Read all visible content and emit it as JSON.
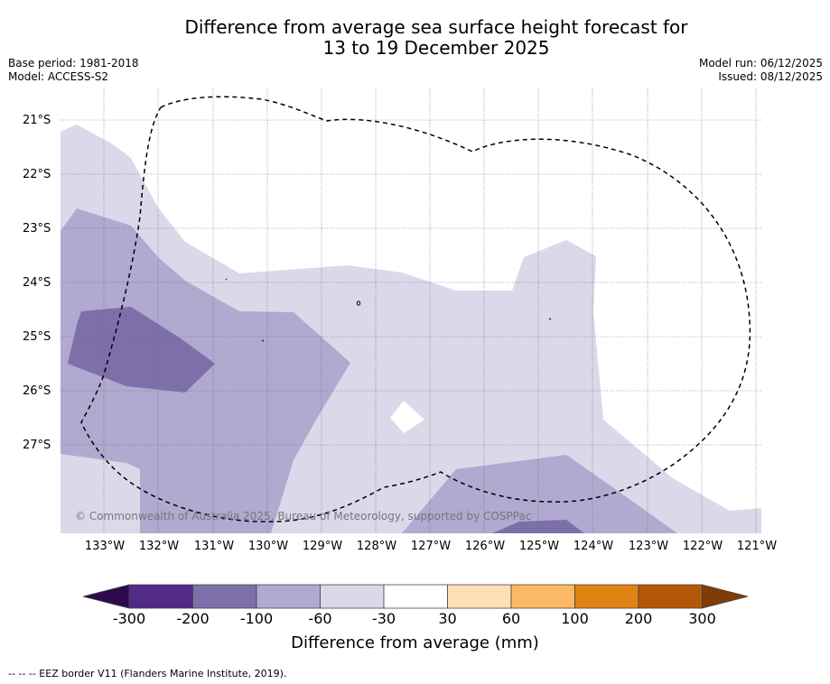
{
  "title": {
    "line1": "Difference from average sea surface height forecast for",
    "line2": "13 to 19 December 2025"
  },
  "meta_left": {
    "base_period": "Base period: 1981-2018",
    "model": "Model: ACCESS-S2"
  },
  "meta_right": {
    "model_run": "Model run: 06/12/2025",
    "issued": "Issued: 08/12/2025"
  },
  "map": {
    "lat_labels": [
      "21°S",
      "22°S",
      "23°S",
      "24°S",
      "25°S",
      "26°S",
      "27°S"
    ],
    "lon_labels": [
      "133°W",
      "132°W",
      "131°W",
      "130°W",
      "129°W",
      "128°W",
      "127°W",
      "126°W",
      "125°W",
      "124°W",
      "123°W",
      "122°W",
      "121°W"
    ],
    "copyright": "© Commonwealth of Australia 2025, Bureau of Meteorology, supported by COSPPac",
    "region_colors": {
      "-300_-200": "#522a87",
      "-200_-100": "#7e6fab",
      "-100_-60": "#b0a9d0",
      "-60_-30": "#d9d9ea",
      "-30_30": "#ffffff"
    },
    "eez_border_style": "dashed"
  },
  "colorbar": {
    "bins": [
      {
        "range": "<-300",
        "color": "#2d0a4e"
      },
      {
        "range": "-300 to -200",
        "color": "#522a87"
      },
      {
        "range": "-200 to -100",
        "color": "#7e6fab"
      },
      {
        "range": "-100 to -60",
        "color": "#b0a9d0"
      },
      {
        "range": "-60 to -30",
        "color": "#d9d9ea"
      },
      {
        "range": "-30 to 30",
        "color": "#ffffff"
      },
      {
        "range": "30 to 60",
        "color": "#fee0b6"
      },
      {
        "range": "60 to 100",
        "color": "#fdb863"
      },
      {
        "range": "100 to 200",
        "color": "#e08214"
      },
      {
        "range": "200 to 300",
        "color": "#b35806"
      },
      {
        "range": ">300",
        "color": "#7f3b08"
      }
    ],
    "ticks": [
      "-300",
      "-200",
      "-100",
      "-60",
      "-30",
      "30",
      "60",
      "100",
      "200",
      "300"
    ],
    "label": "Difference from average (mm)"
  },
  "footnote": "-- -- -- EEZ border V11 (Flanders Marine Institute, 2019)."
}
